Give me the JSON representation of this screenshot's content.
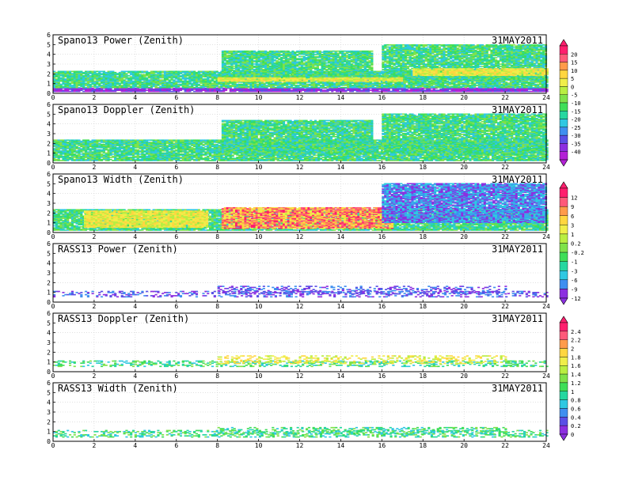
{
  "figure": {
    "date_label": "31MAY2011"
  },
  "chart_data": [
    {
      "type": "heatmap",
      "title": "Spano13 Power (Zenith)",
      "date": "31MAY2011",
      "xlim": [
        0,
        24
      ],
      "ylim": [
        0,
        6
      ],
      "x_ticks": [
        0,
        2,
        4,
        6,
        8,
        10,
        12,
        14,
        16,
        18,
        20,
        22,
        24
      ],
      "y_ticks": [
        0,
        1,
        2,
        3,
        4,
        5,
        6
      ],
      "grid": true,
      "colorbar_ticks": [
        "20",
        "15",
        "10",
        "5",
        "0",
        "-5",
        "-10",
        "-15",
        "-20",
        "-25",
        "-30",
        "-35",
        "-40"
      ],
      "regions": [
        {
          "x0": 0,
          "x1": 24,
          "y0": 0.15,
          "y1": 0.55,
          "value": "low-blue"
        },
        {
          "x0": 0,
          "x1": 24,
          "y0": 0.55,
          "y1": 2.3,
          "value": "mid-green"
        },
        {
          "x0": 8.2,
          "x1": 15.5,
          "y0": 1.2,
          "y1": 4.3,
          "value": "mid-green"
        },
        {
          "x0": 16,
          "x1": 24,
          "y0": 1.4,
          "y1": 5.0,
          "value": "mid-green"
        },
        {
          "x0": 17.5,
          "x1": 24,
          "y0": 1.8,
          "y1": 2.5,
          "value": "high-yellow"
        },
        {
          "x0": 8,
          "x1": 17,
          "y0": 1.2,
          "y1": 1.6,
          "value": "high-yellow"
        }
      ]
    },
    {
      "type": "heatmap",
      "title": "Spano13 Doppler (Zenith)",
      "date": "31MAY2011",
      "xlim": [
        0,
        24
      ],
      "ylim": [
        0,
        6
      ],
      "x_ticks": [
        0,
        2,
        4,
        6,
        8,
        10,
        12,
        14,
        16,
        18,
        20,
        22,
        24
      ],
      "y_ticks": [
        0,
        1,
        2,
        3,
        4,
        5,
        6
      ],
      "grid": true,
      "regions": [
        {
          "x0": 0,
          "x1": 24,
          "y0": 0.2,
          "y1": 2.3,
          "value": "mid-green"
        },
        {
          "x0": 8.2,
          "x1": 15.5,
          "y0": 1.0,
          "y1": 4.4,
          "value": "mid-green"
        },
        {
          "x0": 16,
          "x1": 24,
          "y0": 1.0,
          "y1": 5.0,
          "value": "mid-green"
        }
      ]
    },
    {
      "type": "heatmap",
      "title": "Spano13 Width (Zenith)",
      "date": "31MAY2011",
      "xlim": [
        0,
        24
      ],
      "ylim": [
        0,
        6
      ],
      "x_ticks": [
        0,
        2,
        4,
        6,
        8,
        10,
        12,
        14,
        16,
        18,
        20,
        22,
        24
      ],
      "y_ticks": [
        0,
        1,
        2,
        3,
        4,
        5,
        6
      ],
      "grid": true,
      "colorbar_ticks": [
        "12",
        "9",
        "6",
        "3",
        "1",
        "0.2",
        "-0.2",
        "-1",
        "-3",
        "-6",
        "-9",
        "-12"
      ],
      "regions": [
        {
          "x0": 0,
          "x1": 24,
          "y0": 0.2,
          "y1": 2.3,
          "value": "mid-green"
        },
        {
          "x0": 8.2,
          "x1": 16.5,
          "y0": 0.4,
          "y1": 2.6,
          "value": "high-red"
        },
        {
          "x0": 1.5,
          "x1": 7.5,
          "y0": 0.5,
          "y1": 2.2,
          "value": "high-yellow"
        },
        {
          "x0": 16,
          "x1": 24,
          "y0": 1.0,
          "y1": 5.0,
          "value": "low-blue"
        }
      ]
    },
    {
      "type": "heatmap",
      "title": "RASS13 Power (Zenith)",
      "date": "31MAY2011",
      "xlim": [
        0,
        24
      ],
      "ylim": [
        0,
        6
      ],
      "x_ticks": [
        0,
        2,
        4,
        6,
        8,
        10,
        12,
        14,
        16,
        18,
        20,
        22,
        24
      ],
      "y_ticks": [
        0,
        1,
        2,
        3,
        4,
        5,
        6
      ],
      "grid": true,
      "regions": [
        {
          "x0": 0,
          "x1": 24,
          "y0": 0.5,
          "y1": 1.1,
          "value": "low-blue"
        },
        {
          "x0": 8,
          "x1": 22,
          "y0": 0.8,
          "y1": 1.6,
          "value": "low-blue"
        }
      ]
    },
    {
      "type": "heatmap",
      "title": "RASS13 Doppler (Zenith)",
      "date": "31MAY2011",
      "xlim": [
        0,
        24
      ],
      "ylim": [
        0,
        6
      ],
      "x_ticks": [
        0,
        2,
        4,
        6,
        8,
        10,
        12,
        14,
        16,
        18,
        20,
        22,
        24
      ],
      "y_ticks": [
        0,
        1,
        2,
        3,
        4,
        5,
        6
      ],
      "grid": true,
      "colorbar_ticks": [
        "2.4",
        "2.2",
        "2",
        "1.8",
        "1.6",
        "1.4",
        "1.2",
        "1",
        "0.8",
        "0.6",
        "0.4",
        "0.2",
        "0"
      ],
      "regions": [
        {
          "x0": 0,
          "x1": 24,
          "y0": 0.5,
          "y1": 1.1,
          "value": "mid-green"
        },
        {
          "x0": 8,
          "x1": 22,
          "y0": 0.8,
          "y1": 1.6,
          "value": "high-yellow"
        }
      ]
    },
    {
      "type": "heatmap",
      "title": "RASS13 Width (Zenith)",
      "date": "31MAY2011",
      "xlim": [
        0,
        24
      ],
      "ylim": [
        0,
        6
      ],
      "x_ticks": [
        0,
        2,
        4,
        6,
        8,
        10,
        12,
        14,
        16,
        18,
        20,
        22,
        24
      ],
      "y_ticks": [
        0,
        1,
        2,
        3,
        4,
        5,
        6
      ],
      "grid": true,
      "regions": [
        {
          "x0": 0,
          "x1": 24,
          "y0": 0.4,
          "y1": 1.1,
          "value": "mid-green"
        },
        {
          "x0": 8,
          "x1": 22,
          "y0": 0.7,
          "y1": 1.4,
          "value": "mid-green"
        }
      ]
    }
  ],
  "palettes": {
    "power": [
      "#ff1f6e",
      "#ff5a7a",
      "#ff9b4a",
      "#ffd640",
      "#f0ee4a",
      "#b9ee42",
      "#7fe24a",
      "#3ede58",
      "#26d7a0",
      "#2fc8e2",
      "#3f8ff0",
      "#5a4fe6",
      "#8c2fe0",
      "#b321d6"
    ],
    "width": [
      "#ff1f6e",
      "#ff5a7a",
      "#ff9b4a",
      "#ffd640",
      "#f0ee4a",
      "#b9ee42",
      "#7fe24a",
      "#3ede58",
      "#26d7a0",
      "#2fc8e2",
      "#3f8ff0",
      "#8c2fe0"
    ],
    "rass": [
      "#ff1f6e",
      "#ff5a7a",
      "#ff9b4a",
      "#ffd640",
      "#f0ee4a",
      "#b9ee42",
      "#7fe24a",
      "#3ede58",
      "#26d7a0",
      "#2fc8e2",
      "#3f8ff0",
      "#5a4fe6",
      "#8c2fe0"
    ]
  }
}
